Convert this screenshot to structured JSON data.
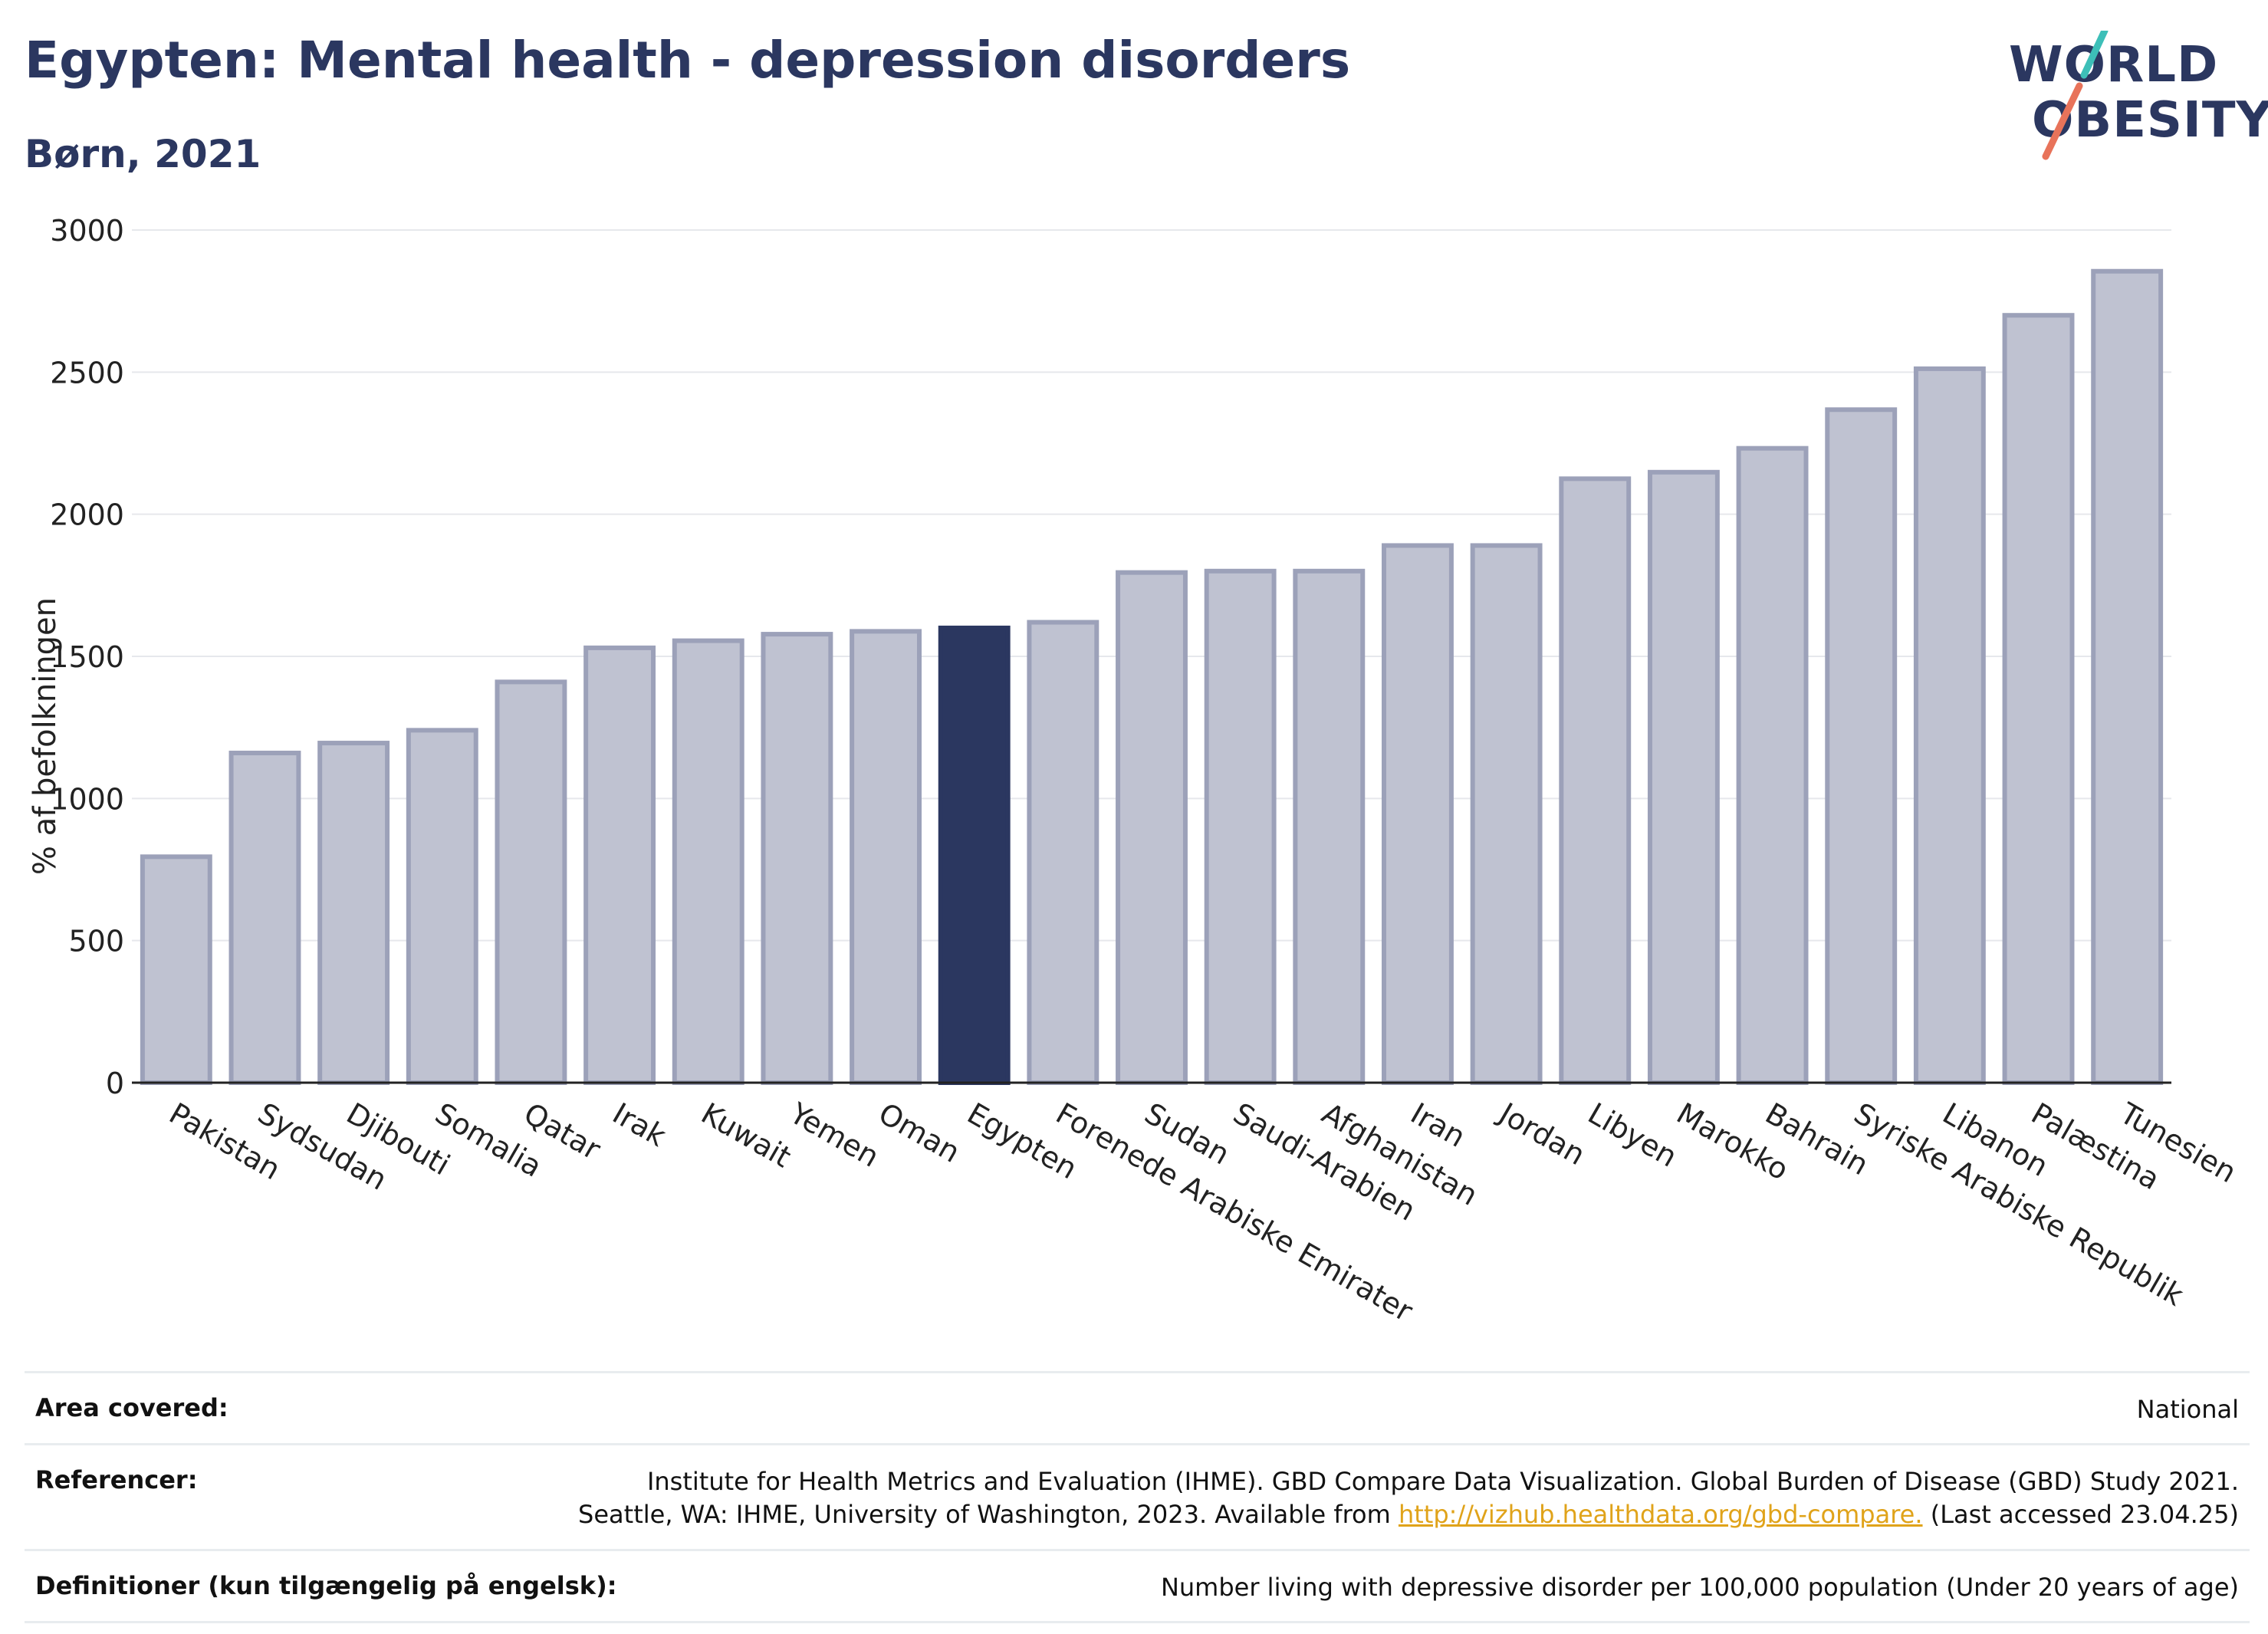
{
  "header": {
    "title": "Egypten: Mental health - depression disorders",
    "subtitle": "Børn, 2021"
  },
  "logo": {
    "line1": "WORLD",
    "line2": "OBESITY",
    "accent_teal": "#3dbfb8",
    "accent_coral": "#e8735a"
  },
  "chart_data": {
    "type": "bar",
    "title": "Egypten: Mental health - depression disorders",
    "subtitle": "Børn, 2021",
    "ylabel": "% af befolkningen",
    "xlabel": "",
    "ylim": [
      0,
      3000
    ],
    "yticks": [
      0,
      500,
      1000,
      1500,
      2000,
      2500,
      3000
    ],
    "grid": true,
    "highlight": "Egypten",
    "colors": {
      "bar": "#bfc2d1",
      "bar_edge": "#9ca1b9",
      "highlight": "#2b3760"
    },
    "categories": [
      "Pakistan",
      "Sydsudan",
      "Djibouti",
      "Somalia",
      "Qatar",
      "Irak",
      "Kuwait",
      "Yemen",
      "Oman",
      "Egypten",
      "Forenede Arabiske Emirater",
      "Sudan",
      "Saudi-Arabien",
      "Afghanistan",
      "Iran",
      "Jordan",
      "Libyen",
      "Marokko",
      "Bahrain",
      "Syriske Arabiske Republik",
      "Libanon",
      "Palæstina",
      "Tunesien"
    ],
    "values": [
      795,
      1160,
      1195,
      1240,
      1410,
      1530,
      1555,
      1578,
      1588,
      1600,
      1620,
      1795,
      1800,
      1800,
      1890,
      1890,
      2125,
      2148,
      2232,
      2368,
      2512,
      2700,
      2855
    ]
  },
  "footer": {
    "area_label": "Area covered:",
    "area_value": "National",
    "ref_label": "Referencer:",
    "ref_line1": "Institute for Health Metrics and Evaluation (IHME). GBD Compare Data Visualization. Global Burden of Disease (GBD) Study 2021.",
    "ref_line2_pre": "Seattle, WA: IHME, University of Washington, 2023. Available from ",
    "ref_link": "http://vizhub.healthdata.org/gbd-compare.",
    "ref_line2_post": " (Last accessed 23.04.25)",
    "def_label": "Definitioner (kun tilgængelig på engelsk):",
    "def_value": "Number living with depressive disorder per 100,000 population (Under 20 years of age)"
  }
}
